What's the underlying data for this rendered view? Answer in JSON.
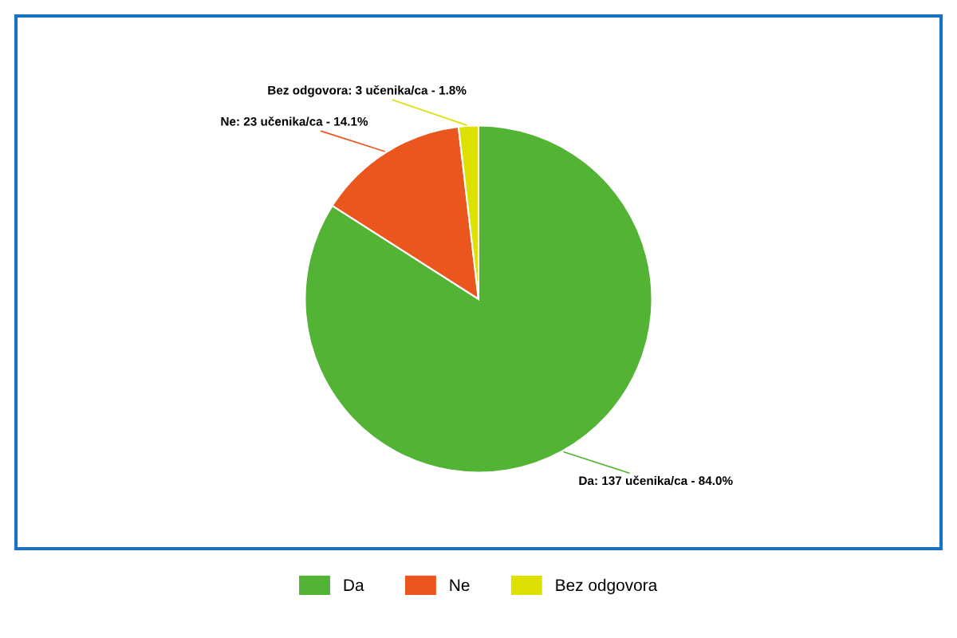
{
  "chart_data": {
    "type": "pie",
    "categories": [
      "Da",
      "Ne",
      "Bez odgovora"
    ],
    "values": [
      137,
      23,
      3
    ],
    "colors": [
      "#52b334",
      "#eb561e",
      "#dde000"
    ],
    "value_labels": [
      "Da: 137 učenika/ca - 84.0%",
      "Ne: 23 učenika/ca - 14.1%",
      "Bez odgovora: 3 učenika/ca - 1.8%"
    ],
    "legend": "bottom"
  }
}
